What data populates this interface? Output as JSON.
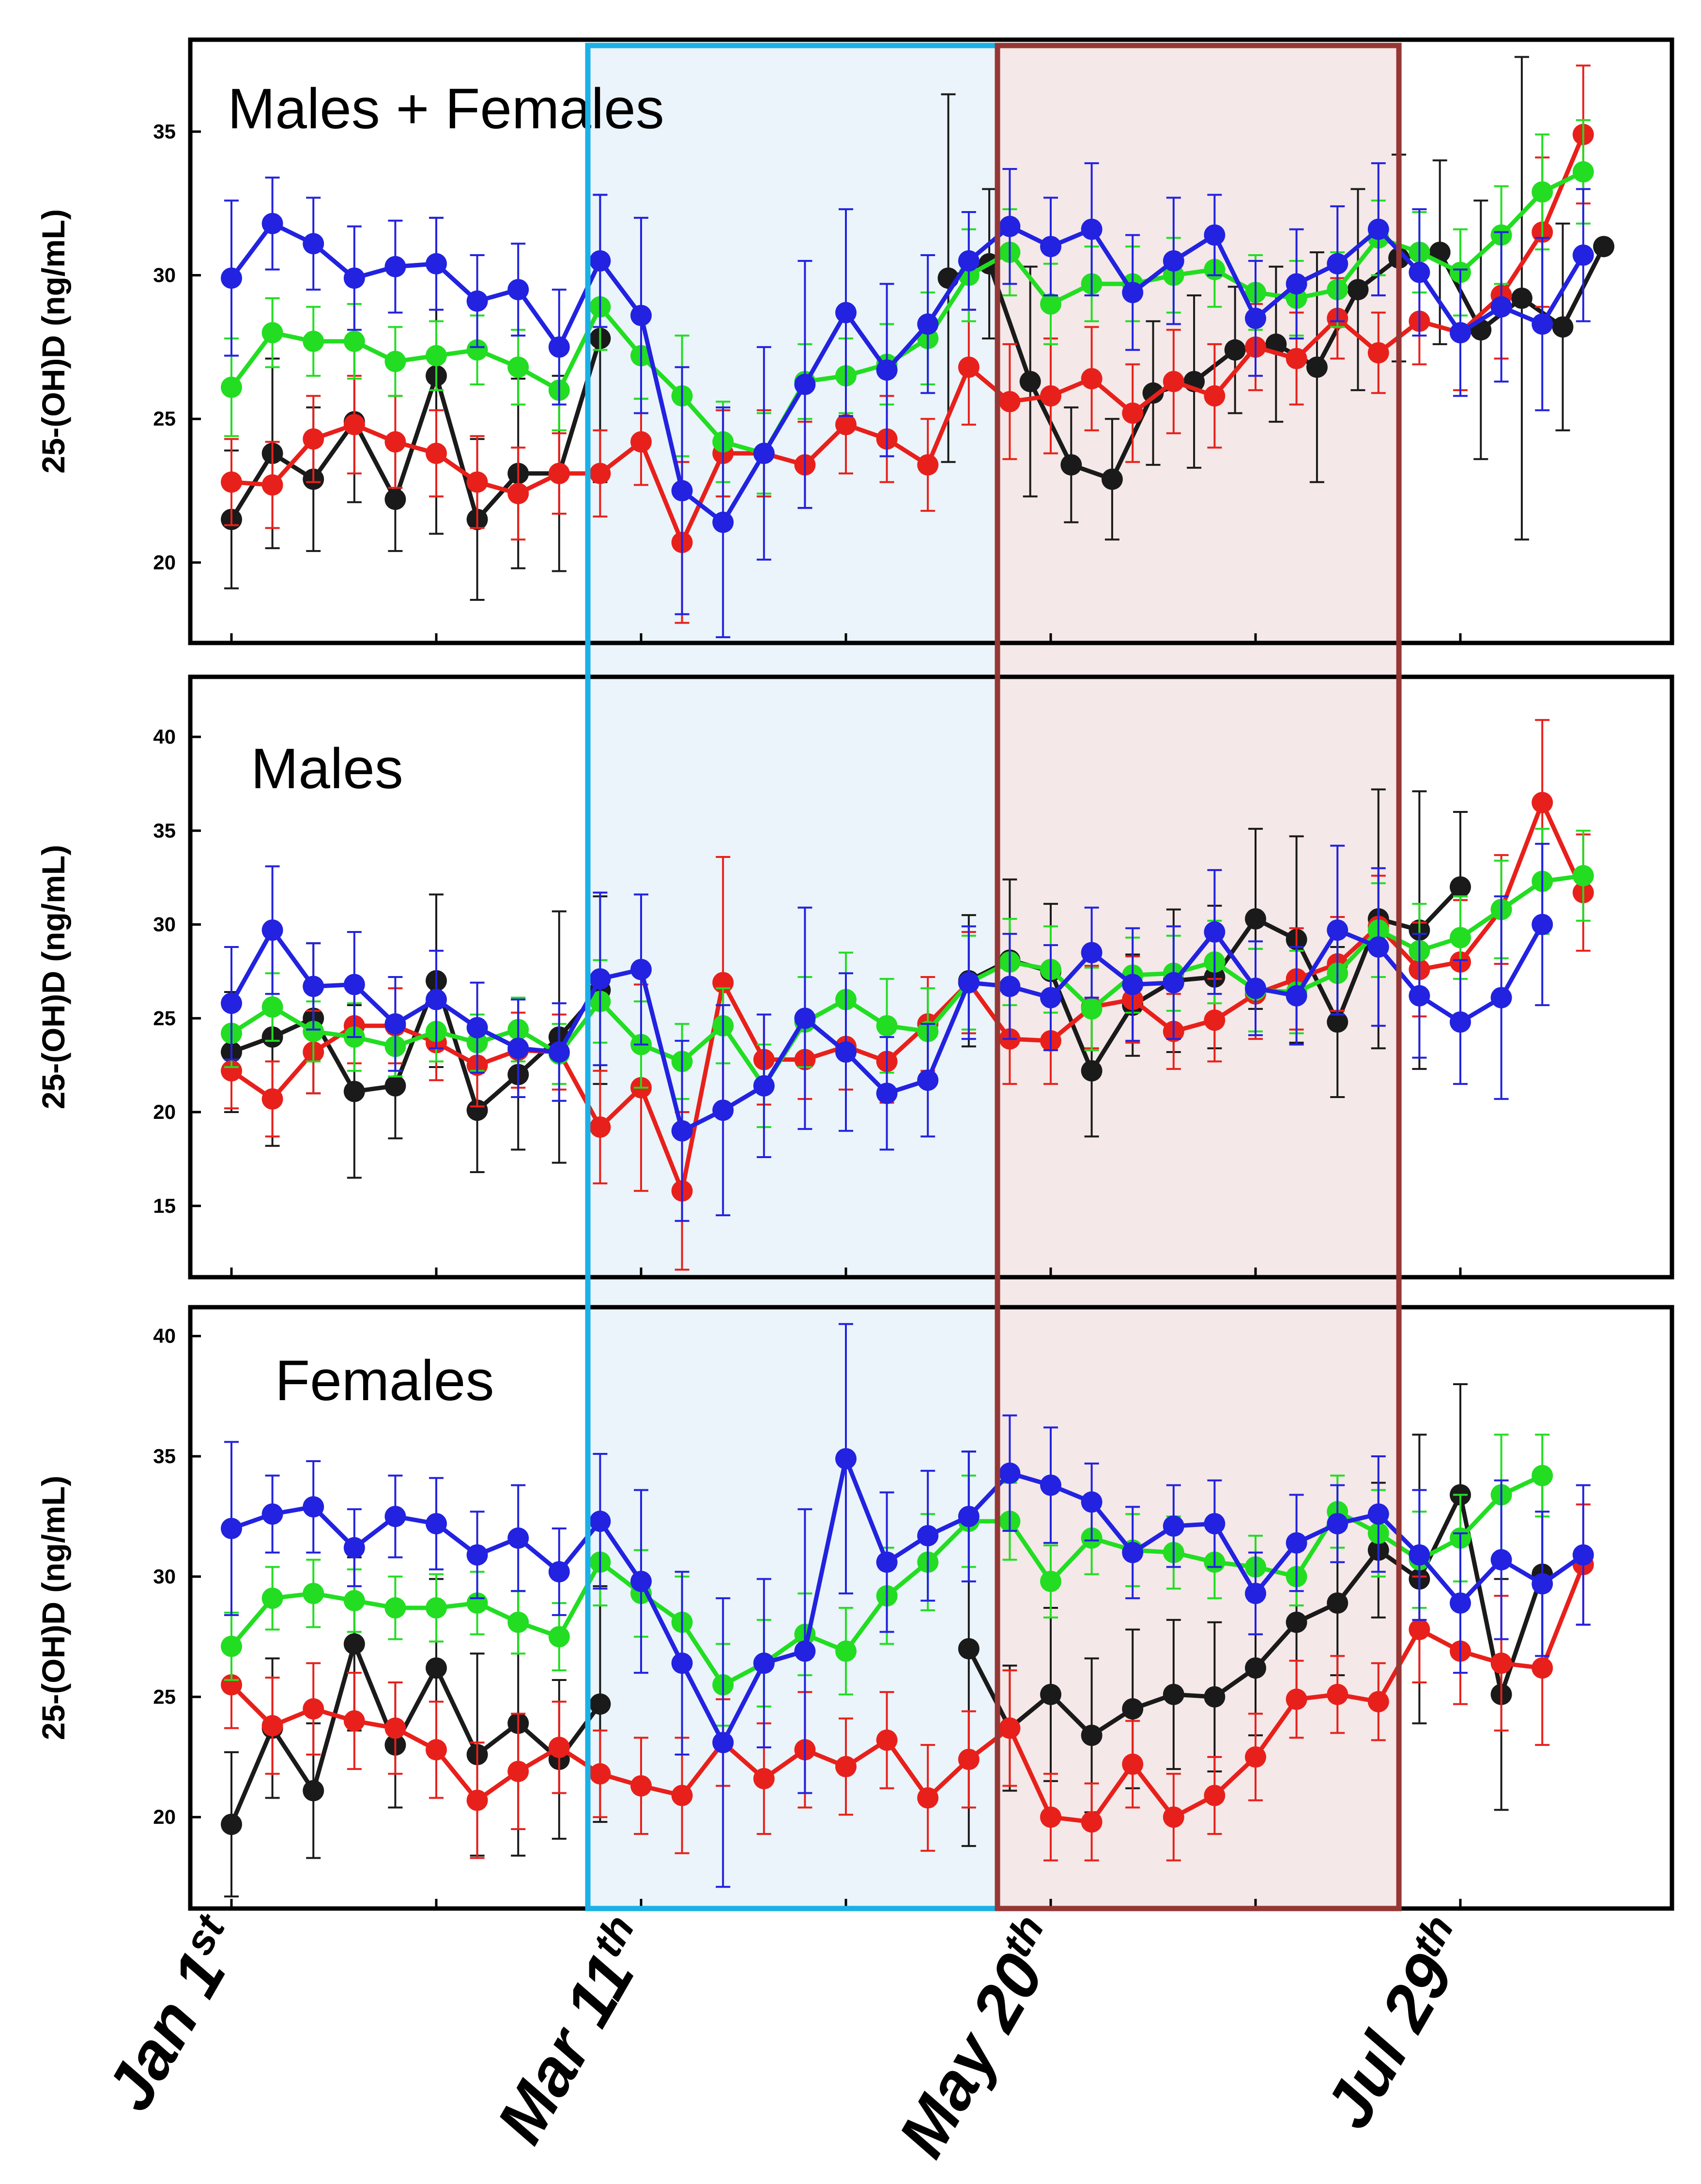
{
  "chart_data": {
    "type": "line",
    "x_tick_labels": [
      {
        "main": "Jan 1",
        "sup": "st",
        "week": 0
      },
      {
        "main": "Mar 11",
        "sup": "th",
        "week": 10
      },
      {
        "main": "May 20",
        "sup": "th",
        "week": 20
      },
      {
        "main": "Jul 29",
        "sup": "th",
        "week": 30
      }
    ],
    "x_minor_tick_weeks": [
      5,
      15,
      25
    ],
    "week_range": [
      -1,
      34.5
    ],
    "highlight_regions": [
      {
        "name": "spring",
        "from_week": 8.7,
        "to_week": 18.7,
        "edge": "#1BB1E6",
        "fill": "#EAF4FA"
      },
      {
        "name": "summer",
        "from_week": 18.7,
        "to_week": 28.5,
        "edge": "#953735",
        "fill": "#F4E8E8"
      }
    ],
    "series_colors": {
      "black": "#1A1A1A",
      "red": "#E8201B",
      "green": "#22DD22",
      "blue": "#2222E0"
    },
    "panels": [
      {
        "title": "Males + Females",
        "ylabel": "25-(OH)D (ng/mL)",
        "ylim": [
          17.2,
          38.2
        ],
        "yticks": [
          20,
          25,
          30,
          35
        ],
        "series": [
          {
            "name": "black",
            "segments": [
              {
                "start": 0,
                "values": [
                  21.5,
                  23.8,
                  22.9,
                  24.9,
                  22.2,
                  26.5,
                  21.5,
                  23.1,
                  23.1,
                  27.8
                ]
              },
              {
                "start": 17.5,
                "values": [
                  29.9,
                  30.4,
                  26.3,
                  23.4,
                  22.9,
                  25.9,
                  26.3,
                  27.4,
                  27.6,
                  26.8,
                  29.5,
                  30.6,
                  30.8,
                  28.1,
                  29.2,
                  28.2,
                  31.0
                ]
              }
            ],
            "errors": [
              2.4,
              3.3,
              2.5,
              2.8,
              1.8,
              5.5,
              2.8,
              3.3,
              3.4,
              5.0,
              0,
              0,
              0,
              0,
              0,
              0,
              0,
              6.4,
              6.4,
              2.6,
              4.0,
              2.0,
              2.1,
              2.5,
              3.0,
              2.2,
              2.7,
              4.0,
              3.5,
              3.6,
              3.2,
              4.5,
              8.4,
              3.6
            ],
            "errors_by": "x"
          },
          {
            "name": "red",
            "start": 0,
            "values": [
              22.8,
              22.7,
              24.3,
              24.8,
              24.2,
              23.8,
              22.8,
              22.4,
              23.1,
              23.1,
              24.2,
              20.7,
              23.8,
              23.8,
              23.4,
              24.8,
              24.3,
              23.4,
              26.8,
              25.6,
              25.8,
              26.4,
              25.2,
              26.3,
              25.8,
              27.5,
              27.1,
              28.5,
              27.3,
              28.4,
              28.0,
              29.3,
              31.5,
              34.9
            ],
            "errors": [
              1.5,
              1.5,
              1.5,
              1.7,
              1.6,
              1.5,
              1.6,
              1.6,
              1.4,
              1.5,
              1.5,
              2.8,
              1.5,
              1.5,
              1.5,
              1.7,
              1.5,
              1.6,
              2.0,
              2.0,
              2.0,
              1.8,
              1.7,
              1.8,
              1.8,
              1.5,
              1.6,
              1.4,
              1.4,
              1.5,
              2.0,
              2.2,
              2.6,
              2.4
            ]
          },
          {
            "name": "green",
            "start": 0,
            "values": [
              26.1,
              28.0,
              27.7,
              27.7,
              27.0,
              27.2,
              27.4,
              26.8,
              26.0,
              28.9,
              27.2,
              25.8,
              24.2,
              23.8,
              26.3,
              26.5,
              26.9,
              27.8,
              30.0,
              30.8,
              29.0,
              29.7,
              29.7,
              30.0,
              30.2,
              29.4,
              29.2,
              29.5,
              31.3,
              30.8,
              30.1,
              31.4,
              32.9,
              33.6
            ],
            "errors": [
              1.7,
              1.2,
              1.2,
              1.3,
              1.2,
              1.2,
              1.2,
              1.3,
              1.4,
              1.5,
              1.5,
              2.1,
              1.4,
              1.4,
              1.3,
              1.3,
              1.4,
              1.6,
              1.6,
              1.5,
              1.4,
              1.3,
              1.3,
              1.3,
              1.3,
              1.3,
              1.3,
              1.3,
              1.3,
              1.4,
              1.5,
              1.7,
              2.0,
              1.8
            ]
          },
          {
            "name": "blue",
            "start": 0,
            "values": [
              29.9,
              31.8,
              31.1,
              29.9,
              30.3,
              30.4,
              29.1,
              29.5,
              27.5,
              30.5,
              28.6,
              22.5,
              21.4,
              23.8,
              26.2,
              28.7,
              26.7,
              28.3,
              30.5,
              31.7,
              31.0,
              31.6,
              29.4,
              30.5,
              31.4,
              28.5,
              29.7,
              30.4,
              31.6,
              30.1,
              28.0,
              28.9,
              28.3,
              30.7
            ],
            "errors": [
              2.7,
              1.6,
              1.6,
              1.8,
              1.6,
              1.6,
              1.6,
              1.6,
              2.0,
              2.3,
              3.4,
              4.3,
              4.0,
              3.7,
              4.3,
              3.6,
              3.0,
              2.4,
              1.7,
              2.0,
              1.7,
              2.3,
              2.0,
              2.2,
              1.4,
              2.0,
              1.9,
              2.0,
              2.3,
              2.2,
              2.2,
              2.6,
              3.0,
              2.3
            ]
          }
        ]
      },
      {
        "title": "Males",
        "ylabel": "25-(OH)D (ng/mL)",
        "ylim": [
          11.2,
          43.2
        ],
        "yticks": [
          15,
          20,
          25,
          30,
          35,
          40
        ],
        "series": [
          {
            "name": "black",
            "segments": [
              {
                "start": 0,
                "values": [
                  23.2,
                  24.0,
                  25.0,
                  21.1,
                  21.4,
                  27.0,
                  20.1,
                  22.0,
                  24.0,
                  26.5
                ]
              },
              {
                "start": 18,
                "values": [
                  27.0,
                  28.1,
                  27.5,
                  22.2,
                  25.7,
                  27.0,
                  27.2,
                  30.3,
                  29.2,
                  24.8,
                  30.3,
                  29.7,
                  32.0
                ]
              }
            ],
            "errors": [
              3.2,
              5.8,
              4.0,
              4.6,
              2.8,
              4.6,
              3.3,
              4.0,
              6.7,
              5.0,
              0,
              0,
              0,
              0,
              0,
              0,
              0,
              0,
              3.5,
              4.3,
              3.6,
              3.5,
              2.7,
              3.8,
              3.8,
              4.8,
              5.5,
              4.0,
              6.9,
              7.4,
              4.0
            ],
            "errors_by": "x"
          },
          {
            "name": "red",
            "start": 0,
            "values": [
              22.2,
              20.7,
              23.2,
              24.6,
              24.6,
              23.7,
              22.5,
              23.3,
              23.2,
              19.2,
              21.3,
              15.8,
              26.9,
              22.8,
              22.8,
              23.5,
              22.7,
              24.7,
              26.9,
              23.9,
              23.8,
              25.6,
              26.0,
              24.3,
              24.9,
              26.3,
              27.1,
              27.9,
              29.9,
              27.6,
              28.0,
              30.8,
              36.5,
              31.7
            ],
            "errors": [
              2.0,
              2.0,
              2.2,
              2.0,
              2.0,
              2.0,
              2.2,
              2.0,
              2.0,
              3.0,
              5.5,
              4.2,
              6.7,
              2.4,
              2.1,
              2.3,
              2.2,
              2.5,
              2.7,
              2.4,
              2.3,
              2.2,
              2.3,
              2.0,
              2.2,
              2.4,
              2.7,
              2.5,
              2.7,
              2.5,
              3.3,
              2.9,
              4.4,
              3.1
            ]
          },
          {
            "name": "green",
            "start": 0,
            "values": [
              24.2,
              25.6,
              24.3,
              24.0,
              23.5,
              24.3,
              23.7,
              24.4,
              23.1,
              25.9,
              23.6,
              22.7,
              24.6,
              21.4,
              24.8,
              26.0,
              24.6,
              24.3,
              26.9,
              28.0,
              27.6,
              25.5,
              27.3,
              27.4,
              28.0,
              26.5,
              26.4,
              27.4,
              29.7,
              28.6,
              29.3,
              30.8,
              32.3,
              32.6
            ],
            "errors": [
              1.8,
              1.8,
              1.6,
              1.8,
              1.6,
              1.6,
              1.5,
              1.7,
              1.6,
              2.2,
              2.3,
              2.0,
              2.0,
              2.2,
              2.4,
              2.5,
              2.5,
              2.3,
              2.5,
              2.3,
              2.3,
              2.2,
              2.0,
              2.0,
              2.2,
              2.2,
              2.2,
              2.2,
              2.5,
              2.5,
              2.2,
              2.6,
              2.8,
              2.4
            ]
          },
          {
            "name": "blue",
            "start": 0,
            "values": [
              25.8,
              29.7,
              26.7,
              26.8,
              24.7,
              26.0,
              24.5,
              23.4,
              23.2,
              27.1,
              27.6,
              19.0,
              20.1,
              21.4,
              25.0,
              23.2,
              21.0,
              21.7,
              26.9,
              26.7,
              26.1,
              28.5,
              26.8,
              26.9,
              29.6,
              26.6,
              26.2,
              29.7,
              28.8,
              26.2,
              24.8,
              26.1,
              30.0
            ],
            "errors": [
              3.0,
              3.4,
              2.3,
              2.8,
              2.5,
              2.6,
              2.4,
              2.6,
              2.6,
              4.6,
              4.0,
              4.8,
              5.6,
              3.8,
              5.9,
              4.2,
              3.0,
              3.0,
              3.0,
              2.8,
              2.8,
              2.4,
              3.0,
              3.0,
              3.3,
              2.5,
              2.6,
              4.5,
              4.2,
              3.3,
              3.3,
              5.4,
              4.3
            ]
          }
        ]
      },
      {
        "title": "Females",
        "ylabel": "25-(OH)D (ng/mL)",
        "ylim": [
          16.2,
          41.2
        ],
        "yticks": [
          20,
          25,
          30,
          35,
          40
        ],
        "series": [
          {
            "name": "black",
            "segments": [
              {
                "start": 0,
                "values": [
                  19.7,
                  23.7,
                  21.1,
                  27.2,
                  23.0,
                  26.2,
                  22.6,
                  23.9,
                  22.4,
                  24.7
                ]
              },
              {
                "start": 18,
                "values": [
                  27.0,
                  23.7,
                  25.1,
                  23.4,
                  24.5,
                  25.1,
                  25.0,
                  26.2,
                  28.1,
                  28.9,
                  31.1,
                  29.9,
                  33.4,
                  25.1,
                  30.1
                ]
              }
            ],
            "errors": [
              3.0,
              2.9,
              2.8,
              3.6,
              2.6,
              3.7,
              4.2,
              5.5,
              3.3,
              4.9,
              0,
              0,
              0,
              0,
              0,
              0,
              0,
              0,
              8.2,
              2.6,
              3.6,
              3.2,
              3.3,
              3.1,
              3.1,
              2.8,
              3.0,
              3.0,
              2.8,
              6.0,
              4.6,
              4.8,
              4.1
            ],
            "errors_by": "x"
          },
          {
            "name": "red",
            "start": 0,
            "values": [
              25.5,
              23.8,
              24.5,
              24.0,
              23.7,
              22.8,
              20.7,
              21.9,
              22.9,
              21.8,
              21.3,
              20.9,
              23.1,
              21.6,
              22.8,
              22.1,
              23.2,
              20.8,
              22.4,
              23.7,
              20.0,
              19.8,
              22.2,
              20.0,
              20.9,
              22.5,
              24.9,
              25.1,
              24.8,
              27.8,
              26.9,
              26.4,
              26.2,
              30.5
            ],
            "errors": [
              1.8,
              2.0,
              1.9,
              2.0,
              1.9,
              2.0,
              2.4,
              2.4,
              1.9,
              1.8,
              2.0,
              2.4,
              1.8,
              2.3,
              2.4,
              2.0,
              2.0,
              2.2,
              2.0,
              2.4,
              1.8,
              1.6,
              1.8,
              1.8,
              1.6,
              1.8,
              1.6,
              1.6,
              1.6,
              2.2,
              2.2,
              2.8,
              3.2,
              2.5
            ]
          },
          {
            "name": "green",
            "start": 0,
            "values": [
              27.1,
              29.1,
              29.3,
              29.0,
              28.7,
              28.7,
              28.9,
              28.1,
              27.5,
              30.6,
              29.3,
              28.1,
              25.5,
              26.4,
              27.6,
              26.9,
              29.2,
              30.6,
              32.3,
              32.3,
              29.8,
              31.6,
              31.1,
              31.0,
              30.6,
              30.4,
              30.0,
              32.7,
              31.8,
              30.7,
              31.6,
              33.4,
              34.2
            ],
            "errors": [
              1.4,
              1.3,
              1.4,
              1.3,
              1.3,
              1.4,
              1.3,
              1.3,
              1.4,
              1.8,
              1.8,
              1.9,
              1.7,
              1.8,
              1.7,
              1.8,
              2.0,
              2.0,
              1.9,
              1.6,
              1.5,
              1.5,
              1.5,
              1.5,
              1.5,
              1.3,
              1.2,
              1.5,
              1.8,
              2.0,
              1.8,
              2.5,
              1.7
            ]
          },
          {
            "name": "blue",
            "start": 0,
            "values": [
              32.0,
              32.6,
              32.9,
              31.2,
              32.5,
              32.2,
              30.9,
              31.6,
              30.2,
              32.3,
              29.8,
              26.4,
              23.1,
              26.4,
              26.9,
              34.9,
              30.6,
              31.7,
              32.5,
              34.3,
              33.8,
              33.1,
              31.0,
              32.1,
              32.2,
              29.3,
              31.4,
              32.2,
              32.6,
              30.9,
              28.9,
              30.7,
              29.7,
              30.9
            ],
            "errors": [
              3.6,
              1.6,
              1.9,
              1.6,
              1.7,
              1.9,
              1.8,
              2.2,
              1.8,
              2.8,
              3.8,
              3.8,
              6.0,
              3.5,
              5.9,
              5.6,
              2.9,
              2.7,
              2.7,
              2.4,
              2.4,
              1.6,
              1.9,
              1.7,
              1.8,
              1.7,
              2.0,
              1.6,
              2.4,
              2.7,
              2.9,
              3.3,
              3.0,
              2.9
            ]
          }
        ]
      }
    ]
  }
}
